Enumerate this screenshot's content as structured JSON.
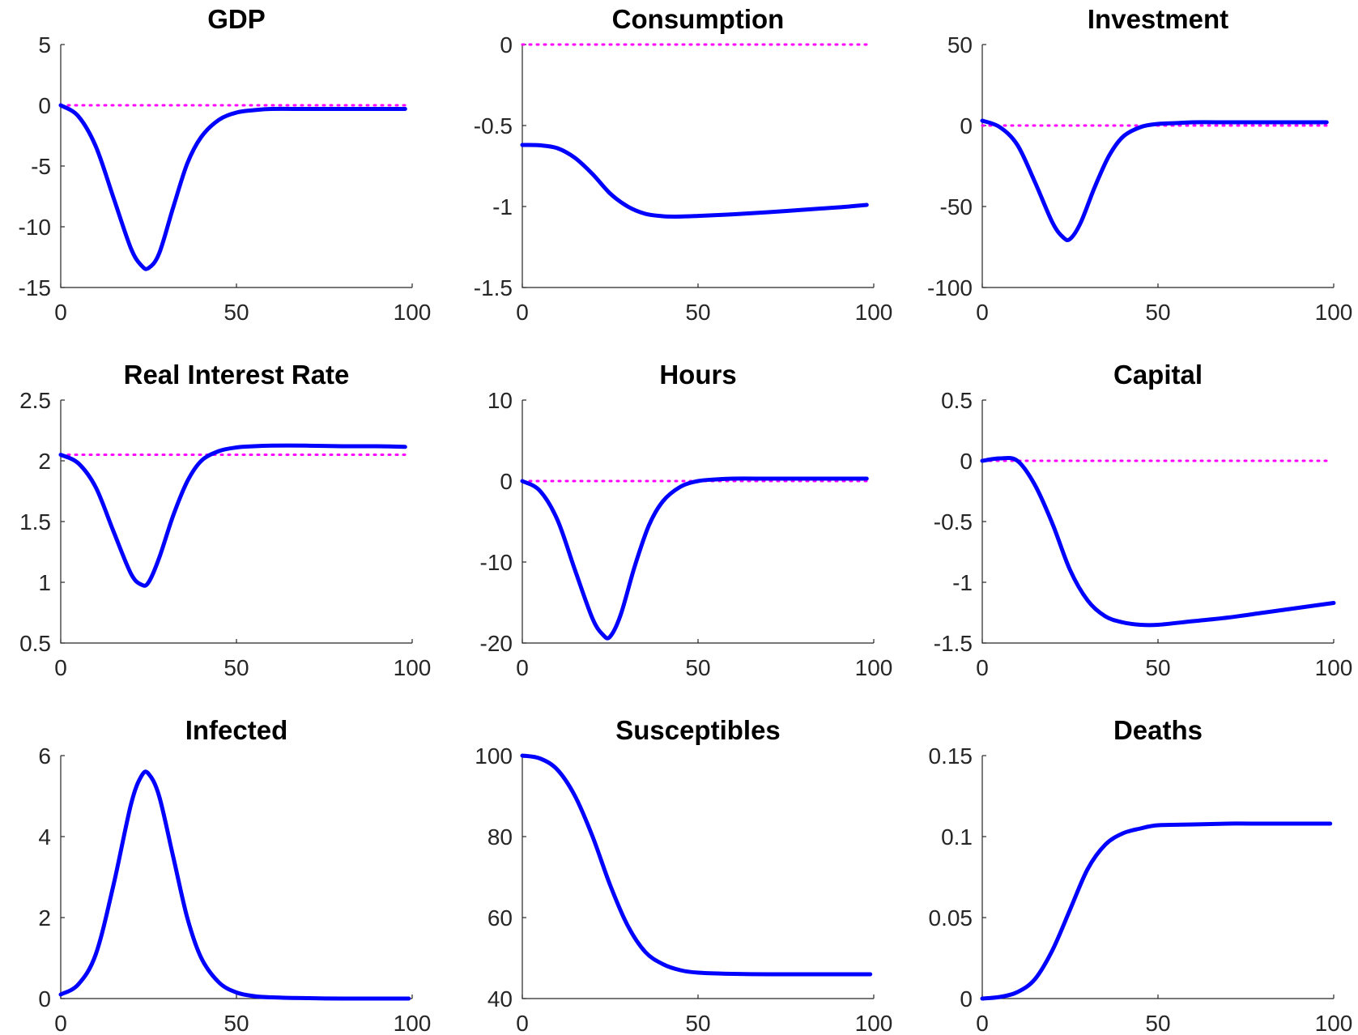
{
  "colors": {
    "series": "#0000ff",
    "reference": "#ff00ff",
    "axis": "#262626"
  },
  "chart_data": [
    {
      "type": "line",
      "title": "GDP",
      "xlabel": "",
      "ylabel": "",
      "xlim": [
        0,
        100
      ],
      "ylim": [
        -15,
        5
      ],
      "xticks": [
        0,
        50,
        100
      ],
      "yticks": [
        -15,
        -10,
        -5,
        0,
        5
      ],
      "grid": false,
      "reference_line": {
        "y": 0,
        "x": [
          0,
          98
        ],
        "style": "dotted"
      },
      "series": [
        {
          "x": [
            0,
            5,
            10,
            15,
            20,
            23,
            25,
            28,
            32,
            36,
            40,
            45,
            50,
            55,
            60,
            70,
            80,
            90,
            98
          ],
          "y": [
            0,
            -0.9,
            -3.4,
            -7.6,
            -11.8,
            -13.2,
            -13.4,
            -12.2,
            -8.4,
            -4.8,
            -2.6,
            -1.2,
            -0.6,
            -0.4,
            -0.3,
            -0.3,
            -0.3,
            -0.3,
            -0.3
          ]
        }
      ]
    },
    {
      "type": "line",
      "title": "Consumption",
      "xlabel": "",
      "ylabel": "",
      "xlim": [
        0,
        100
      ],
      "ylim": [
        -1.5,
        0
      ],
      "xticks": [
        0,
        50,
        100
      ],
      "yticks": [
        -1.5,
        -1,
        -0.5,
        0
      ],
      "grid": false,
      "reference_line": {
        "y": 0,
        "x": [
          0,
          98
        ],
        "style": "dotted"
      },
      "series": [
        {
          "x": [
            0,
            5,
            10,
            15,
            20,
            25,
            30,
            35,
            40,
            45,
            50,
            60,
            70,
            80,
            90,
            98
          ],
          "y": [
            -0.62,
            -0.622,
            -0.64,
            -0.7,
            -0.8,
            -0.92,
            -1.0,
            -1.045,
            -1.06,
            -1.062,
            -1.058,
            -1.048,
            -1.035,
            -1.02,
            -1.005,
            -0.99
          ]
        }
      ]
    },
    {
      "type": "line",
      "title": "Investment",
      "xlabel": "",
      "ylabel": "",
      "xlim": [
        0,
        100
      ],
      "ylim": [
        -100,
        50
      ],
      "xticks": [
        0,
        50,
        100
      ],
      "yticks": [
        -100,
        -50,
        0,
        50
      ],
      "grid": false,
      "reference_line": {
        "y": 0,
        "x": [
          0,
          98
        ],
        "style": "dotted"
      },
      "series": [
        {
          "x": [
            0,
            5,
            10,
            15,
            20,
            23,
            25,
            28,
            32,
            36,
            40,
            45,
            50,
            55,
            60,
            70,
            80,
            90,
            98
          ],
          "y": [
            3,
            -1,
            -12,
            -35,
            -60,
            -69,
            -70,
            -60,
            -38,
            -19,
            -7,
            -1,
            1,
            1.5,
            2,
            2,
            2,
            2,
            2
          ]
        }
      ]
    },
    {
      "type": "line",
      "title": "Real Interest Rate",
      "xlabel": "",
      "ylabel": "",
      "xlim": [
        0,
        100
      ],
      "ylim": [
        0.5,
        2.5
      ],
      "xticks": [
        0,
        50,
        100
      ],
      "yticks": [
        0.5,
        1,
        1.5,
        2,
        2.5
      ],
      "grid": false,
      "reference_line": {
        "y": 2.05,
        "x": [
          0,
          98
        ],
        "style": "dotted"
      },
      "series": [
        {
          "x": [
            0,
            5,
            10,
            15,
            20,
            23,
            25,
            28,
            32,
            36,
            40,
            45,
            50,
            55,
            60,
            70,
            80,
            90,
            98
          ],
          "y": [
            2.05,
            1.98,
            1.78,
            1.42,
            1.07,
            0.98,
            1.0,
            1.2,
            1.55,
            1.83,
            2.0,
            2.08,
            2.11,
            2.12,
            2.125,
            2.125,
            2.12,
            2.12,
            2.115
          ]
        }
      ]
    },
    {
      "type": "line",
      "title": "Hours",
      "xlabel": "",
      "ylabel": "",
      "xlim": [
        0,
        100
      ],
      "ylim": [
        -20,
        10
      ],
      "xticks": [
        0,
        50,
        100
      ],
      "yticks": [
        -20,
        -10,
        0,
        10
      ],
      "grid": false,
      "reference_line": {
        "y": 0,
        "x": [
          0,
          98
        ],
        "style": "dotted"
      },
      "series": [
        {
          "x": [
            0,
            5,
            10,
            15,
            20,
            23,
            25,
            28,
            32,
            36,
            40,
            45,
            50,
            55,
            60,
            70,
            80,
            90,
            98
          ],
          "y": [
            0,
            -1.2,
            -4.8,
            -11,
            -17,
            -19,
            -19.2,
            -16.5,
            -10.5,
            -5.5,
            -2.5,
            -0.7,
            0,
            0.2,
            0.3,
            0.3,
            0.3,
            0.3,
            0.3
          ]
        }
      ]
    },
    {
      "type": "line",
      "title": "Capital",
      "xlabel": "",
      "ylabel": "",
      "xlim": [
        0,
        100
      ],
      "ylim": [
        -1.5,
        0.5
      ],
      "xticks": [
        0,
        50,
        100
      ],
      "yticks": [
        -1.5,
        -1,
        -0.5,
        0,
        0.5
      ],
      "grid": false,
      "reference_line": {
        "y": 0,
        "x": [
          0,
          98
        ],
        "style": "dotted"
      },
      "series": [
        {
          "x": [
            0,
            5,
            10,
            15,
            20,
            25,
            30,
            35,
            40,
            45,
            50,
            60,
            70,
            80,
            90,
            100
          ],
          "y": [
            0,
            0.02,
            0,
            -0.2,
            -0.52,
            -0.9,
            -1.15,
            -1.28,
            -1.33,
            -1.35,
            -1.35,
            -1.32,
            -1.29,
            -1.25,
            -1.21,
            -1.17
          ]
        }
      ]
    },
    {
      "type": "line",
      "title": "Infected",
      "xlabel": "",
      "ylabel": "",
      "xlim": [
        0,
        100
      ],
      "ylim": [
        0,
        6
      ],
      "xticks": [
        0,
        50,
        100
      ],
      "yticks": [
        0,
        2,
        4,
        6
      ],
      "grid": false,
      "series": [
        {
          "x": [
            0,
            5,
            10,
            15,
            20,
            23,
            25,
            28,
            32,
            36,
            40,
            45,
            50,
            55,
            60,
            70,
            80,
            90,
            99
          ],
          "y": [
            0.1,
            0.35,
            1.1,
            2.8,
            4.8,
            5.5,
            5.55,
            5.0,
            3.5,
            2.0,
            1.0,
            0.4,
            0.15,
            0.06,
            0.03,
            0.01,
            0,
            0,
            0
          ]
        }
      ]
    },
    {
      "type": "line",
      "title": "Susceptibles",
      "xlabel": "",
      "ylabel": "",
      "xlim": [
        0,
        100
      ],
      "ylim": [
        40,
        100
      ],
      "xticks": [
        0,
        50,
        100
      ],
      "yticks": [
        40,
        60,
        80,
        100
      ],
      "grid": false,
      "series": [
        {
          "x": [
            0,
            5,
            10,
            15,
            20,
            25,
            30,
            35,
            40,
            45,
            50,
            60,
            70,
            80,
            90,
            99
          ],
          "y": [
            100,
            99.3,
            96.5,
            90,
            80,
            68,
            58,
            51.5,
            48.5,
            47,
            46.4,
            46.1,
            46,
            46,
            46,
            46
          ]
        }
      ]
    },
    {
      "type": "line",
      "title": "Deaths",
      "xlabel": "",
      "ylabel": "",
      "xlim": [
        0,
        100
      ],
      "ylim": [
        0,
        0.15
      ],
      "xticks": [
        0,
        50,
        100
      ],
      "yticks": [
        0,
        0.05,
        0.1,
        0.15
      ],
      "grid": false,
      "series": [
        {
          "x": [
            0,
            5,
            10,
            15,
            20,
            25,
            30,
            35,
            40,
            45,
            50,
            60,
            70,
            80,
            90,
            99
          ],
          "y": [
            0,
            0.001,
            0.004,
            0.012,
            0.03,
            0.055,
            0.08,
            0.095,
            0.102,
            0.105,
            0.107,
            0.1075,
            0.108,
            0.108,
            0.108,
            0.108
          ]
        }
      ]
    }
  ]
}
